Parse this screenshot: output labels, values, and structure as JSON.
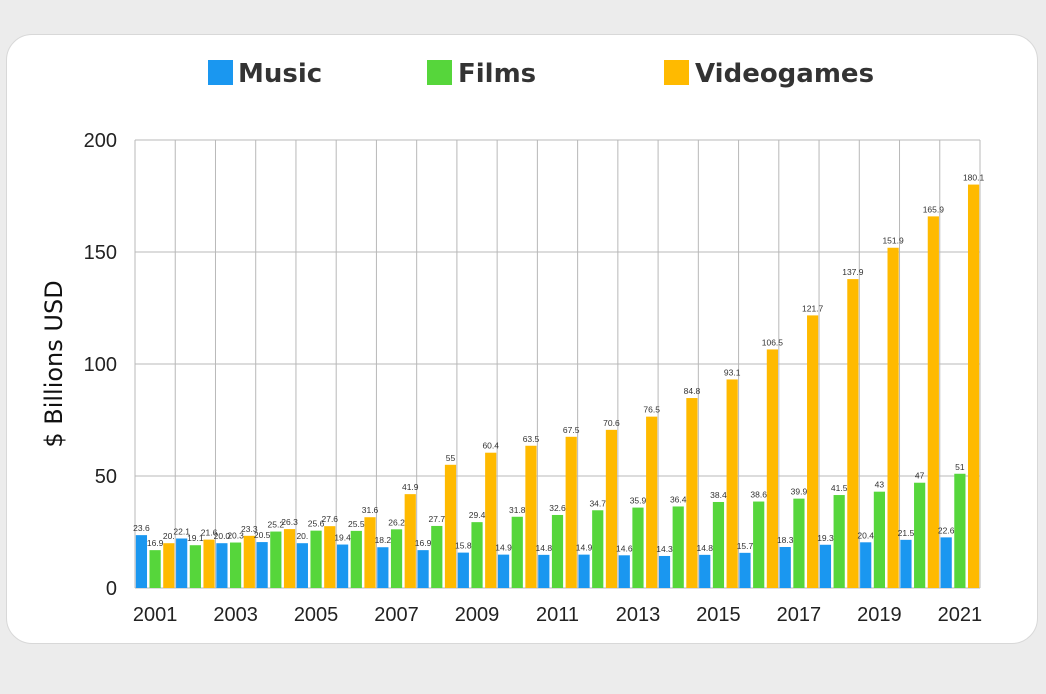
{
  "colors": {
    "music": "#1a97f0",
    "films": "#56d63b",
    "videogames": "#ffba00",
    "grid": "#b8b8b8"
  },
  "chart_data": {
    "type": "bar",
    "title": "",
    "xlabel": "",
    "ylabel": "$ Billions USD",
    "ylim": [
      0,
      200
    ],
    "yticks": [
      0,
      50,
      100,
      150,
      200
    ],
    "grid": true,
    "legend_position": "top",
    "categories": [
      "2001",
      "2002",
      "2003",
      "2004",
      "2005",
      "2006",
      "2007",
      "2008",
      "2009",
      "2010",
      "2011",
      "2012",
      "2013",
      "2014",
      "2015",
      "2016",
      "2017",
      "2018",
      "2019",
      "2020",
      "2021"
    ],
    "xtick_labels": [
      "2001",
      "",
      "2003",
      "",
      "2005",
      "",
      "2007",
      "",
      "2009",
      "",
      "2011",
      "",
      "2013",
      "",
      "2015",
      "",
      "2017",
      "",
      "2019",
      "",
      "2021"
    ],
    "series": [
      {
        "name": "Music",
        "color_key": "music",
        "values": [
          23.6,
          22.1,
          20.0,
          20.5,
          20.0,
          19.4,
          18.2,
          16.9,
          15.8,
          14.9,
          14.8,
          14.9,
          14.6,
          14.3,
          14.8,
          15.7,
          18.3,
          19.3,
          20.4,
          21.5,
          22.6
        ],
        "labels": [
          "23.6",
          "22.1",
          "20.0",
          "20.5",
          "20.",
          "19.4",
          "18.2",
          "16.9",
          "15.8",
          "14.9",
          "14.8",
          "14.9",
          "14.6",
          "14.3",
          "14.8",
          "15.7",
          "18.3",
          "19.3",
          "20.4",
          "21.5",
          "22.6"
        ]
      },
      {
        "name": "Films",
        "color_key": "films",
        "values": [
          16.9,
          19.1,
          20.3,
          25.2,
          25.6,
          25.5,
          26.2,
          27.7,
          29.4,
          31.8,
          32.6,
          34.7,
          35.9,
          36.4,
          38.4,
          38.6,
          39.9,
          41.5,
          43,
          47,
          51
        ],
        "labels": [
          "16.9",
          "19.1",
          "20.3",
          "25.2",
          "25.6",
          "25.5",
          "26.2",
          "27.7",
          "29.4",
          "31.8",
          "32.6",
          "34.7",
          "35.9",
          "36.4",
          "38.4",
          "38.6",
          "39.9",
          "41.5",
          "43",
          "47",
          "51"
        ]
      },
      {
        "name": "Videogames",
        "color_key": "videogames",
        "values": [
          20.0,
          21.6,
          23.3,
          26.3,
          27.6,
          31.6,
          41.9,
          55,
          60.4,
          63.5,
          67.5,
          70.6,
          76.5,
          84.8,
          93.1,
          106.5,
          121.7,
          137.9,
          151.9,
          165.9,
          180.1
        ],
        "labels": [
          "20.",
          "21.6",
          "23.3",
          "26.3",
          "27.6",
          "31.6",
          "41.9",
          "55",
          "60.4",
          "63.5",
          "67.5",
          "70.6",
          "76.5",
          "84.8",
          "93.1",
          "106.5",
          "121.7",
          "137.9",
          "151.9",
          "165.9",
          "180.1"
        ]
      }
    ]
  }
}
